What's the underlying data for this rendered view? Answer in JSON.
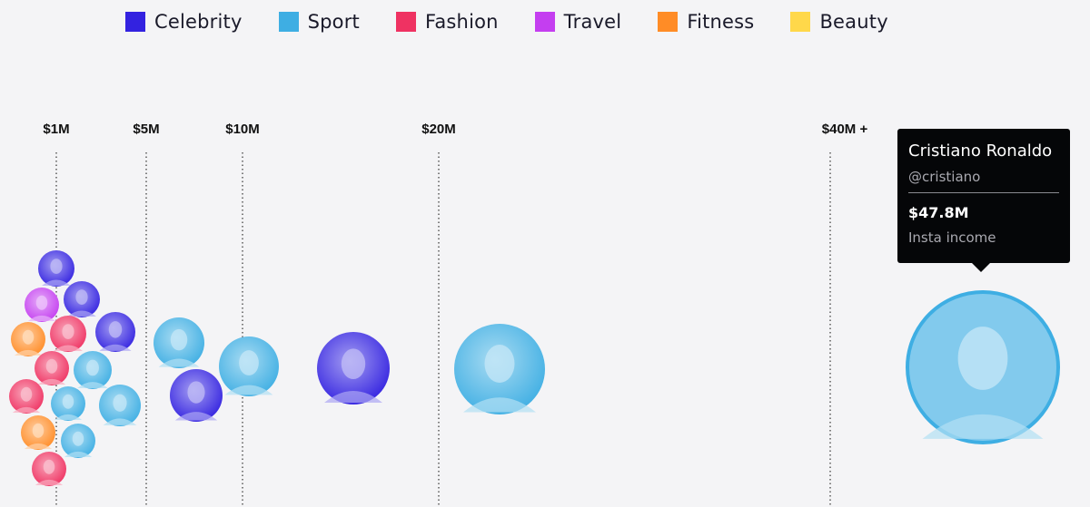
{
  "legend": [
    {
      "label": "Celebrity",
      "color": "#3322e0"
    },
    {
      "label": "Sport",
      "color": "#3eaee3"
    },
    {
      "label": "Fashion",
      "color": "#ef3262"
    },
    {
      "label": "Travel",
      "color": "#c43ef0"
    },
    {
      "label": "Fitness",
      "color": "#ff8c26"
    },
    {
      "label": "Beauty",
      "color": "#ffd84a"
    }
  ],
  "chart_data": {
    "type": "scatter",
    "x_axis_scale": "log",
    "x_ticks": [
      {
        "value": 1,
        "label": "$1M"
      },
      {
        "value": 5,
        "label": "$5M"
      },
      {
        "value": 10,
        "label": "$10M"
      },
      {
        "value": 20,
        "label": "$20M"
      },
      {
        "value": 40,
        "label": "$40M +"
      }
    ],
    "grid": "vertical dotted lines at ticks",
    "points": [
      {
        "category": "Celebrity",
        "income": 1.0
      },
      {
        "category": "Travel",
        "income": 0.9
      },
      {
        "category": "Celebrity",
        "income": 1.4
      },
      {
        "category": "Fitness",
        "income": 0.8
      },
      {
        "category": "Fashion",
        "income": 1.2
      },
      {
        "category": "Celebrity",
        "income": 2.8
      },
      {
        "category": "Fashion",
        "income": 1.0
      },
      {
        "category": "Sport",
        "income": 2.2
      },
      {
        "category": "Fashion",
        "income": 0.8
      },
      {
        "category": "Sport",
        "income": 1.3
      },
      {
        "category": "Sport",
        "income": 3.0
      },
      {
        "category": "Fitness",
        "income": 0.9
      },
      {
        "category": "Sport",
        "income": 1.8
      },
      {
        "category": "Fashion",
        "income": 1.0
      },
      {
        "category": "Sport",
        "income": 6.2
      },
      {
        "category": "Celebrity",
        "income": 7.0
      },
      {
        "category": "Sport",
        "income": 11.0
      },
      {
        "category": "Celebrity",
        "income": 15.0
      },
      {
        "category": "Sport",
        "income": 23.0
      },
      {
        "category": "Sport",
        "income": 47.8,
        "name": "Cristiano Ronaldo",
        "handle": "@cristiano",
        "highlighted": true
      }
    ]
  },
  "tooltip": {
    "name": "Cristiano Ronaldo",
    "handle": "@cristiano",
    "value": "$47.8M",
    "sub": "Insta income"
  }
}
